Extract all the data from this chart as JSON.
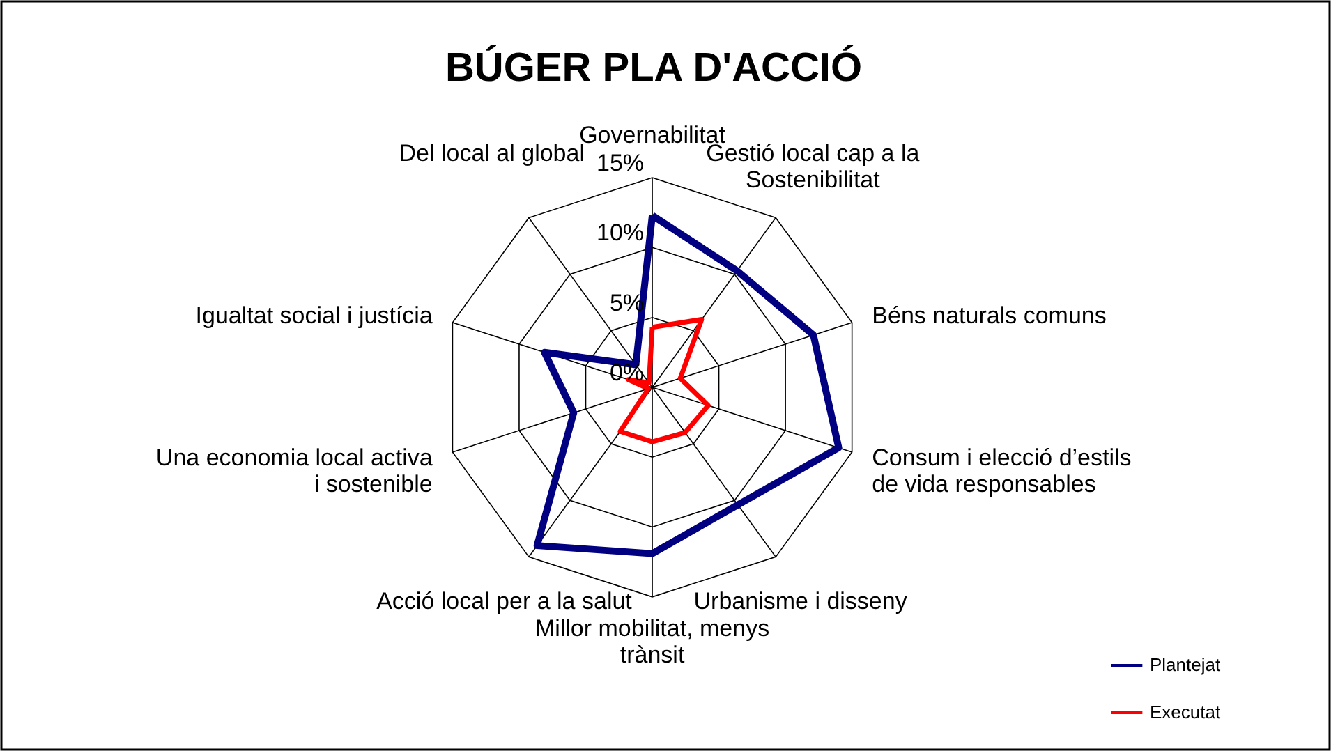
{
  "chart_data": {
    "type": "radar",
    "title": "BÚGER PLA D'ACCIÓ",
    "categories": [
      "Governabilitat",
      "Gestió local cap a la\nSostenibilitat",
      "Béns naturals comuns",
      "Consum i elecció d’estils\nde vida responsables",
      "Urbanisme i disseny",
      "Millor mobilitat, menys\ntrànsit",
      "Acció local per a la salut",
      "Una economia local activa\ni sostenible",
      "Igualtat social i justícia",
      "Del local al global"
    ],
    "series": [
      {
        "name": "Plantejat",
        "color": "#000080",
        "values": [
          12.3,
          10.3,
          12.1,
          14,
          10.4,
          11.9,
          14,
          5.9,
          8.1,
          2
        ]
      },
      {
        "name": "Executat",
        "color": "#ff0000",
        "values": [
          4.3,
          6,
          2.1,
          4.2,
          4,
          3.9,
          3.9,
          0.3,
          1.8,
          0.4
        ]
      }
    ],
    "ylim": [
      0,
      15
    ],
    "yticks": [
      {
        "value": 0,
        "label": "0%"
      },
      {
        "value": 5,
        "label": "5%"
      },
      {
        "value": 10,
        "label": "10%"
      },
      {
        "value": 15,
        "label": "15%"
      }
    ],
    "grid": true,
    "legend": "bottom right"
  }
}
